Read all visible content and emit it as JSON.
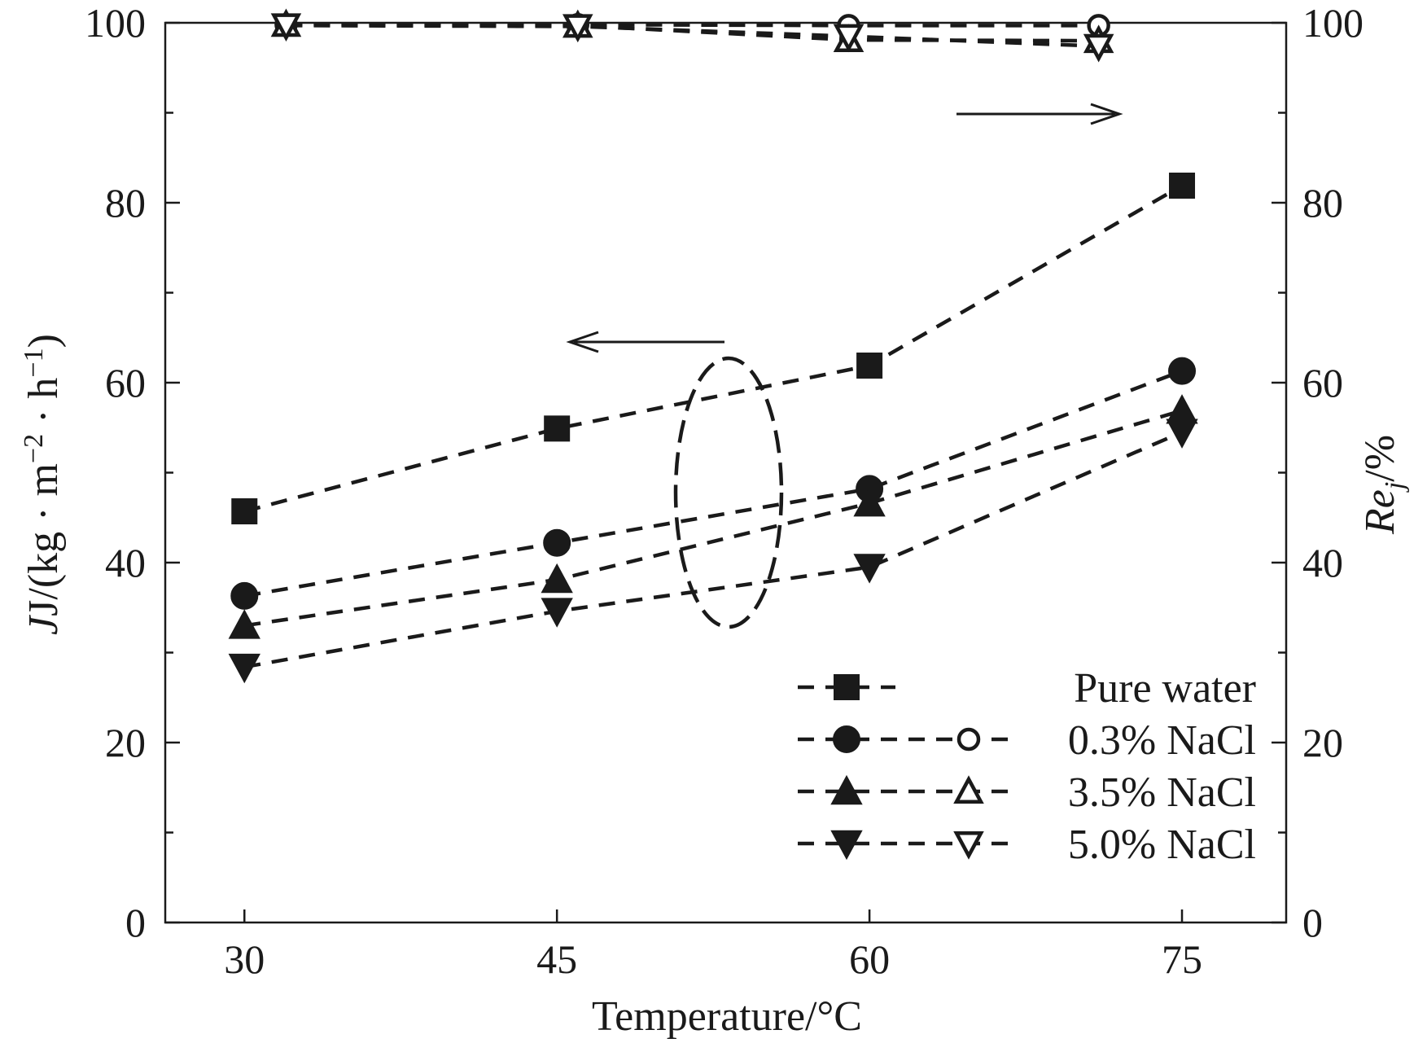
{
  "chart_data": {
    "type": "line",
    "x": [
      30,
      45,
      60,
      75
    ],
    "xlabel": "Temperature/°C",
    "xticks": [
      "30",
      "45",
      "60",
      "75"
    ],
    "ylabel_left": {
      "pre": "J/(kg · m",
      "sup1": "−2",
      "mid": " · h",
      "sup2": "−1",
      "post": ")"
    },
    "ylabel_right": {
      "main": "Re",
      "sub": "j",
      "post": "/%"
    },
    "ylim_left": [
      0,
      100
    ],
    "ylim_right": [
      0,
      100
    ],
    "yticks_left": [
      "0",
      "20",
      "40",
      "60",
      "80",
      "100"
    ],
    "yticks_right": [
      "0",
      "20",
      "40",
      "60",
      "80",
      "100"
    ],
    "flux_series": [
      {
        "name": "Pure water",
        "marker": "square",
        "values": [
          45.7,
          54.9,
          61.9,
          81.9
        ]
      },
      {
        "name": "0.3% NaCl",
        "marker": "circle",
        "values": [
          36.3,
          42.2,
          48.2,
          61.3
        ]
      },
      {
        "name": "3.5% NaCl",
        "marker": "triangle-up",
        "values": [
          33.0,
          38.1,
          46.6,
          56.9
        ]
      },
      {
        "name": "5.0% NaCl",
        "marker": "triangle-down",
        "values": [
          28.4,
          34.6,
          39.5,
          54.5
        ]
      }
    ],
    "rejection_series": [
      {
        "name": "0.3% NaCl",
        "marker": "circle-open",
        "values": [
          99.8,
          99.8,
          99.7,
          99.7
        ]
      },
      {
        "name": "3.5% NaCl",
        "marker": "triangle-up-open",
        "values": [
          99.8,
          99.7,
          98.1,
          98.0
        ]
      },
      {
        "name": "5.0% NaCl",
        "marker": "triangle-down-open",
        "values": [
          99.7,
          99.6,
          98.5,
          97.4
        ]
      }
    ],
    "legend": {
      "placement": "bottom-right",
      "entries": [
        "Pure water",
        "0.3% NaCl",
        "3.5% NaCl",
        "5.0% NaCl"
      ]
    }
  }
}
